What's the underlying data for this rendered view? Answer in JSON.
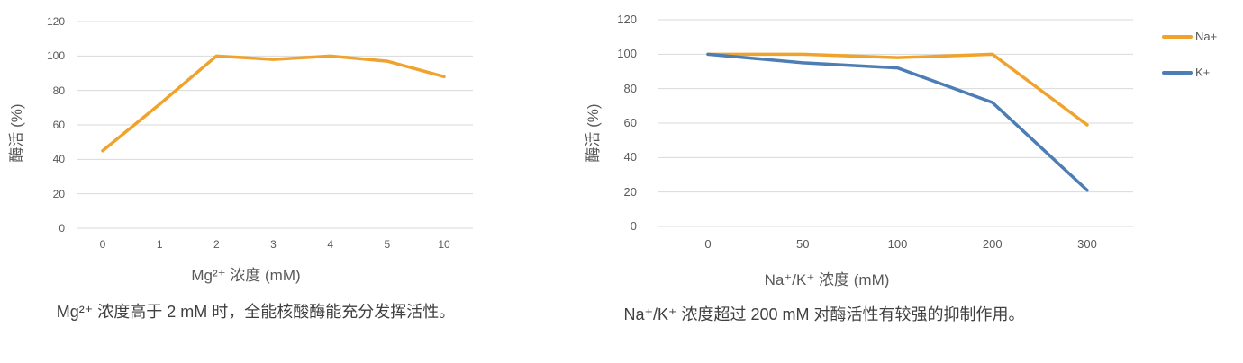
{
  "colors": {
    "background": "#FFFFFF",
    "gridline": "#D9D9D9",
    "orange_series": "#F0A32C",
    "blue_series": "#4C7DB4",
    "tick_text": "#595959",
    "axis_title_text": "#595959",
    "caption_text": "#404040"
  },
  "legend": {
    "position": "right-top-outside",
    "items": [
      {
        "label": "Na+",
        "color": "#F0A32C"
      },
      {
        "label": "K+",
        "color": "#4C7DB4"
      }
    ]
  },
  "chart_data": [
    {
      "type": "line",
      "title": "",
      "categories": [
        "0",
        "1",
        "2",
        "3",
        "4",
        "5",
        "10"
      ],
      "series": [
        {
          "values": [
            45,
            72,
            100,
            98,
            100,
            97,
            88
          ],
          "color": "#F0A32C"
        }
      ],
      "xlabel": "Mg²⁺ 浓度 (mM)",
      "ylabel": "酶活 (%)",
      "ylim": [
        0,
        120
      ],
      "yticks": [
        0,
        20,
        40,
        60,
        80,
        100,
        120
      ],
      "grid": true,
      "legend": false,
      "caption": "Mg²⁺ 浓度高于 2 mM 时，全能核酸酶能充分发挥活性。"
    },
    {
      "type": "line",
      "title": "",
      "categories": [
        "0",
        "50",
        "100",
        "200",
        "300"
      ],
      "series": [
        {
          "name": "Na+",
          "values": [
            100,
            100,
            98,
            100,
            59
          ],
          "color": "#F0A32C"
        },
        {
          "name": "K+",
          "values": [
            100,
            95,
            92,
            72,
            21
          ],
          "color": "#4C7DB4"
        }
      ],
      "xlabel": "Na⁺/K⁺ 浓度 (mM)",
      "ylabel": "酶活 (%)",
      "ylim": [
        0,
        120
      ],
      "yticks": [
        0,
        20,
        40,
        60,
        80,
        100,
        120
      ],
      "grid": true,
      "legend": true,
      "caption": "Na⁺/K⁺ 浓度超过 200 mM 对酶活性有较强的抑制作用。"
    }
  ]
}
